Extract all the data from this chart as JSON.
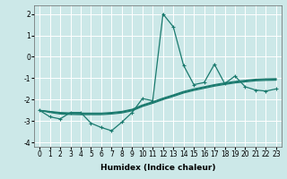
{
  "x": [
    0,
    1,
    2,
    3,
    4,
    5,
    6,
    7,
    8,
    9,
    10,
    11,
    12,
    13,
    14,
    15,
    16,
    17,
    18,
    19,
    20,
    21,
    22,
    23
  ],
  "y_main": [
    -2.5,
    -2.8,
    -2.9,
    -2.6,
    -2.6,
    -3.1,
    -3.3,
    -3.45,
    -3.05,
    -2.6,
    -1.95,
    -2.05,
    2.0,
    1.4,
    -0.4,
    -1.3,
    -1.2,
    -0.35,
    -1.25,
    -0.9,
    -1.4,
    -1.55,
    -1.6,
    -1.5
  ],
  "y_line1": [
    -2.5,
    -2.55,
    -2.6,
    -2.62,
    -2.63,
    -2.63,
    -2.63,
    -2.6,
    -2.55,
    -2.45,
    -2.25,
    -2.1,
    -1.93,
    -1.78,
    -1.62,
    -1.5,
    -1.4,
    -1.3,
    -1.22,
    -1.15,
    -1.1,
    -1.05,
    -1.03,
    -1.02
  ],
  "y_line2": [
    -2.5,
    -2.57,
    -2.63,
    -2.65,
    -2.66,
    -2.66,
    -2.66,
    -2.63,
    -2.58,
    -2.48,
    -2.28,
    -2.13,
    -1.96,
    -1.81,
    -1.65,
    -1.53,
    -1.43,
    -1.33,
    -1.25,
    -1.18,
    -1.13,
    -1.08,
    -1.06,
    -1.05
  ],
  "y_line3": [
    -2.5,
    -2.6,
    -2.67,
    -2.69,
    -2.7,
    -2.7,
    -2.7,
    -2.67,
    -2.62,
    -2.52,
    -2.32,
    -2.17,
    -2.0,
    -1.85,
    -1.69,
    -1.57,
    -1.47,
    -1.37,
    -1.29,
    -1.22,
    -1.17,
    -1.12,
    -1.1,
    -1.09
  ],
  "xlim": [
    -0.5,
    23.5
  ],
  "ylim": [
    -4.2,
    2.4
  ],
  "yticks": [
    -4,
    -3,
    -2,
    -1,
    0,
    1,
    2
  ],
  "xticks": [
    0,
    1,
    2,
    3,
    4,
    5,
    6,
    7,
    8,
    9,
    10,
    11,
    12,
    13,
    14,
    15,
    16,
    17,
    18,
    19,
    20,
    21,
    22,
    23
  ],
  "xlabel": "Humidex (Indice chaleur)",
  "line_color": "#1a7a6e",
  "bg_color": "#cce8e8",
  "grid_color": "#ffffff",
  "marker": "+",
  "markersize": 3,
  "linewidth": 0.9,
  "xlabel_fontsize": 6.5,
  "tick_fontsize": 5.5
}
